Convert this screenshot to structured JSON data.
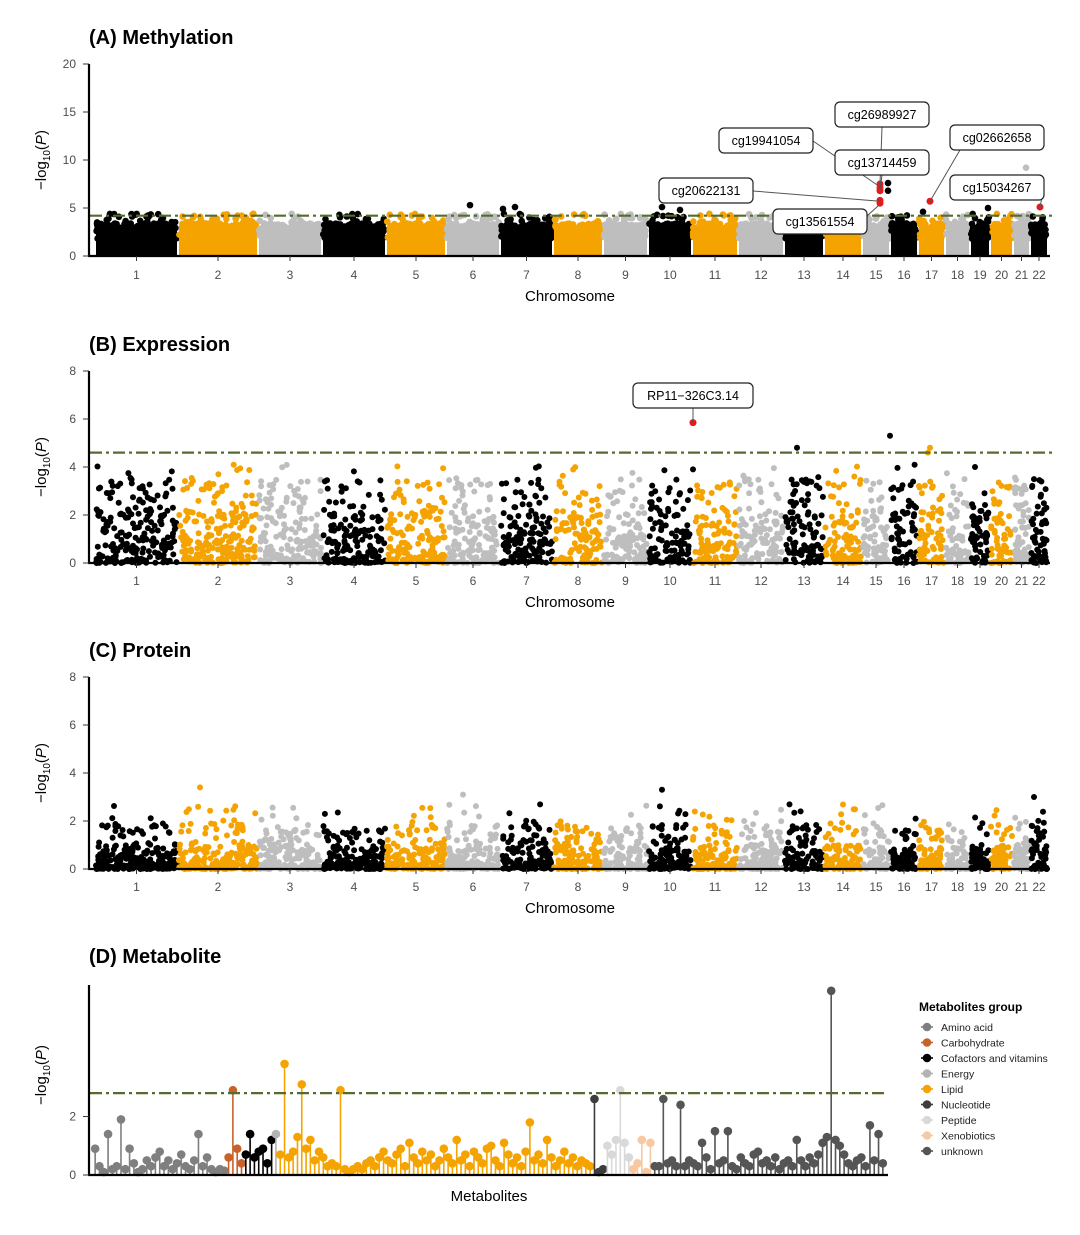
{
  "chart_data": [
    {
      "type": "scatter",
      "title": "(A) Methylation",
      "xlabel": "Chromosome",
      "ylabel": "-log10(P)",
      "ylim": [
        0,
        20
      ],
      "yticks": [
        0,
        5,
        10,
        15,
        20
      ],
      "threshold": 4.2,
      "band_max": 3.6,
      "categories": [
        "1",
        "2",
        "3",
        "4",
        "5",
        "6",
        "7",
        "8",
        "9",
        "10",
        "11",
        "12",
        "13",
        "14",
        "15",
        "16",
        "17",
        "18",
        "19",
        "20",
        "21",
        "22"
      ],
      "colors": {
        "black": "#000000",
        "orange": "#f5a300",
        "gray": "#bebebe",
        "hit": "#e41a1c"
      },
      "annotations": [
        {
          "label": "cg26989927",
          "chrom": "15",
          "value": 7.5
        },
        {
          "label": "cg19941054",
          "chrom": "15",
          "value": 7.2
        },
        {
          "label": "cg13714459",
          "chrom": "15",
          "value": 6.9
        },
        {
          "label": "cg20622131",
          "chrom": "15",
          "value": 5.7
        },
        {
          "label": "cg02662658",
          "chrom": "17",
          "value": 5.7
        },
        {
          "label": "cg15034267",
          "chrom": "22",
          "value": 5.1
        },
        {
          "label": "cg13561554",
          "chrom": "15",
          "value": 5.4
        }
      ]
    },
    {
      "type": "scatter",
      "title": "(B) Expression",
      "xlabel": "Chromosome",
      "ylabel": "-log10(P)",
      "ylim": [
        0,
        8
      ],
      "yticks": [
        0,
        2,
        4,
        6,
        8
      ],
      "threshold": 4.6,
      "band_max": 2.2,
      "categories": [
        "1",
        "2",
        "3",
        "4",
        "5",
        "6",
        "7",
        "8",
        "9",
        "10",
        "11",
        "12",
        "13",
        "14",
        "15",
        "16",
        "17",
        "18",
        "19",
        "20",
        "21",
        "22"
      ],
      "annotations": [
        {
          "label": "RP11−326C3.14",
          "chrom": "10",
          "value": 5.85
        }
      ]
    },
    {
      "type": "scatter",
      "title": "(C) Protein",
      "xlabel": "Chromosome",
      "ylabel": "-log10(P)",
      "ylim": [
        0,
        8
      ],
      "yticks": [
        0,
        2,
        4,
        6,
        8
      ],
      "threshold": null,
      "band_max": 1.0,
      "categories": [
        "1",
        "2",
        "3",
        "4",
        "5",
        "6",
        "7",
        "8",
        "9",
        "10",
        "11",
        "12",
        "13",
        "14",
        "15",
        "16",
        "17",
        "18",
        "19",
        "20",
        "21",
        "22"
      ],
      "annotations": []
    },
    {
      "type": "lollipop",
      "title": "(D) Metabolite",
      "xlabel": "Metabolites",
      "ylabel": "-log10(P)",
      "ylim": [
        0,
        6.5
      ],
      "yticks": [
        0,
        2
      ],
      "threshold": 2.8,
      "legend_title": "Metabolites group",
      "groups": [
        {
          "name": "Amino acid",
          "color": "#7f7f7f",
          "values": [
            0.9,
            0.3,
            0.1,
            1.4,
            0.2,
            0.3,
            1.9,
            0.2,
            0.9,
            0.4,
            0.1,
            0.2,
            0.5,
            0.3,
            0.6,
            0.8,
            0.3,
            0.5,
            0.2,
            0.4,
            0.7,
            0.3,
            0.2,
            0.5,
            1.4,
            0.3,
            0.6,
            0.2,
            0.1,
            0.2,
            0.15
          ]
        },
        {
          "name": "Carbohydrate",
          "color": "#c8612a",
          "values": [
            0.6,
            2.9,
            0.9,
            0.4
          ]
        },
        {
          "name": "Cofactors and vitamins",
          "color": "#000000",
          "values": [
            0.7,
            1.4,
            0.6,
            0.8,
            0.9,
            0.4,
            1.2
          ]
        },
        {
          "name": "Energy",
          "color": "#b3b3b3",
          "values": [
            1.4
          ]
        },
        {
          "name": "Lipid",
          "color": "#f5a300",
          "values": [
            0.7,
            3.8,
            0.6,
            0.8,
            1.3,
            3.1,
            0.9,
            1.2,
            0.5,
            0.8,
            0.6,
            0.3,
            0.4,
            0.3,
            2.9,
            0.2,
            0.1,
            0.2,
            0.3,
            0.2,
            0.4,
            0.5,
            0.3,
            0.6,
            0.8,
            0.5,
            0.4,
            0.7,
            0.9,
            0.3,
            1.1,
            0.6,
            0.4,
            0.8,
            0.5,
            0.7,
            0.3,
            0.5,
            0.9,
            0.6,
            0.4,
            1.2,
            0.5,
            0.7,
            0.3,
            0.8,
            0.6,
            0.4,
            0.9,
            1.0,
            0.5,
            0.3,
            1.1,
            0.7,
            0.4,
            0.6,
            0.3,
            0.8,
            1.8,
            0.5,
            0.7,
            0.4,
            1.2,
            0.6,
            0.3,
            0.5,
            0.8,
            0.4,
            0.6,
            0.3,
            0.5,
            0.4,
            0.3
          ]
        },
        {
          "name": "Nucleotide",
          "color": "#3d3d3d",
          "values": [
            2.6,
            0.1,
            0.2
          ]
        },
        {
          "name": "Peptide",
          "color": "#d9d9d9",
          "values": [
            1.0,
            0.7,
            1.2,
            2.9,
            1.1,
            0.6
          ]
        },
        {
          "name": "Xenobiotics",
          "color": "#f8c9a0",
          "values": [
            0.2,
            0.4,
            1.2,
            0.1,
            1.1
          ]
        },
        {
          "name": "unknown",
          "color": "#555555",
          "values": [
            0.3,
            0.3,
            2.6,
            0.4,
            0.5,
            0.3,
            2.4,
            0.3,
            0.5,
            0.4,
            0.3,
            1.1,
            0.6,
            0.2,
            1.5,
            0.4,
            0.5,
            1.5,
            0.3,
            0.2,
            0.6,
            0.4,
            0.3,
            0.7,
            0.8,
            0.4,
            0.5,
            0.3,
            0.6,
            0.2,
            0.4,
            0.5,
            0.3,
            1.2,
            0.5,
            0.3,
            0.6,
            0.4,
            0.7,
            1.1,
            1.3,
            6.3,
            1.2,
            1.0,
            0.7,
            0.4,
            0.3,
            0.5,
            0.6,
            0.3,
            1.7,
            0.5,
            1.4,
            0.4
          ]
        }
      ]
    }
  ]
}
